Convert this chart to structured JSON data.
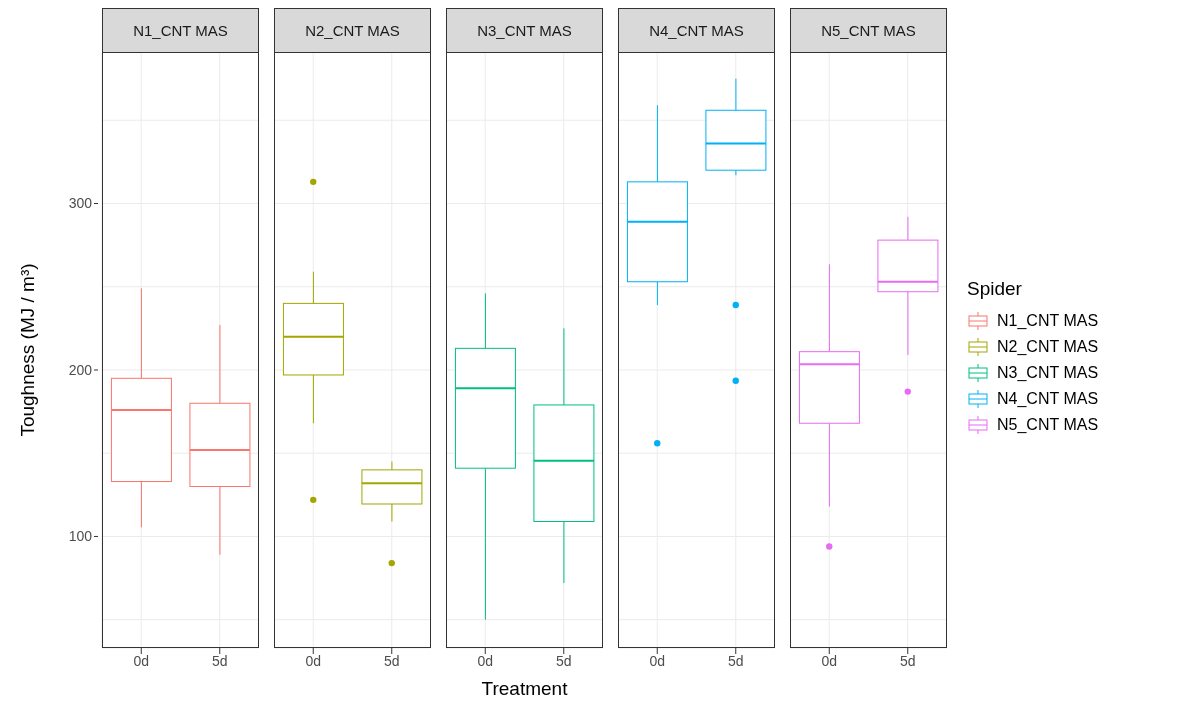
{
  "chart_data": [
    {
      "type": "box",
      "title": "N1_CNT MAS",
      "ylabel": "Toughness (MJ / m³)",
      "categories": [
        "0d",
        "5d"
      ],
      "ylim": [
        33,
        391
      ],
      "yticks": [
        {
          "value": 50,
          "label": null
        },
        100,
        {
          "value": 150,
          "label": null
        },
        200,
        {
          "value": 250,
          "label": null
        },
        300,
        {
          "value": 350,
          "label": null
        }
      ],
      "grid": true,
      "series": [
        {
          "name": "N1_CNT MAS",
          "color": "#f8766d",
          "boxes": [
            {
              "low": 105.5,
              "q1": 133,
              "median": 176,
              "q3": 195,
              "high": 249
            },
            {
              "low": 89,
              "q1": 130,
              "median": 152,
              "q3": 180,
              "high": 227
            }
          ]
        }
      ]
    },
    {
      "type": "box",
      "title": "N2_CNT MAS",
      "categories": [
        "0d",
        "5d"
      ],
      "ylim": [
        33,
        391
      ],
      "yticks": [
        {
          "value": 50,
          "label": null
        },
        100,
        {
          "value": 150,
          "label": null
        },
        200,
        {
          "value": 250,
          "label": null
        },
        300,
        {
          "value": 350,
          "label": null
        }
      ],
      "grid": true,
      "tick_labels": "x",
      "series": [
        {
          "name": "N2_CNT MAS",
          "color": "#a3a500",
          "boxes": [
            {
              "low": 168,
              "q1": 197,
              "median": 220,
              "q3": 240,
              "high": 259,
              "outliers": [
                313,
                122
              ]
            },
            {
              "low": 109,
              "q1": 119.5,
              "median": 132,
              "q3": 140,
              "high": 145,
              "outliers": [
                84
              ]
            }
          ]
        }
      ]
    },
    {
      "type": "box",
      "title": "N3_CNT MAS",
      "xlabel": "Treatment",
      "categories": [
        "0d",
        "5d"
      ],
      "ylim": [
        33,
        391
      ],
      "yticks": [
        {
          "value": 50,
          "label": null
        },
        100,
        {
          "value": 150,
          "label": null
        },
        200,
        {
          "value": 250,
          "label": null
        },
        300,
        {
          "value": 350,
          "label": null
        }
      ],
      "grid": true,
      "tick_labels": "x",
      "series": [
        {
          "name": "N3_CNT MAS",
          "color": "#00bf7d",
          "boxes": [
            {
              "low": 50,
              "q1": 141,
              "median": 189,
              "q3": 213,
              "high": 246
            },
            {
              "low": 72,
              "q1": 109,
              "median": 145.5,
              "q3": 179,
              "high": 225
            }
          ]
        }
      ]
    },
    {
      "type": "box",
      "title": "N4_CNT MAS",
      "categories": [
        "0d",
        "5d"
      ],
      "ylim": [
        33,
        391
      ],
      "yticks": [
        {
          "value": 50,
          "label": null
        },
        100,
        {
          "value": 150,
          "label": null
        },
        200,
        {
          "value": 250,
          "label": null
        },
        300,
        {
          "value": 350,
          "label": null
        }
      ],
      "grid": true,
      "tick_labels": "x",
      "series": [
        {
          "name": "N4_CNT MAS",
          "color": "#00b0f6",
          "boxes": [
            {
              "low": 239,
              "q1": 253,
              "median": 289,
              "q3": 313,
              "high": 359,
              "outliers": [
                156
              ]
            },
            {
              "low": 317,
              "q1": 320,
              "median": 336,
              "q3": 356,
              "high": 375,
              "outliers": [
                239,
                193.5
              ]
            }
          ]
        }
      ]
    },
    {
      "type": "box",
      "title": "N5_CNT MAS",
      "legend_title": "Spider",
      "legend": "right",
      "categories": [
        "0d",
        "5d"
      ],
      "ylim": [
        33,
        391
      ],
      "yticks": [
        {
          "value": 50,
          "label": null
        },
        100,
        {
          "value": 150,
          "label": null
        },
        200,
        {
          "value": 250,
          "label": null
        },
        300,
        {
          "value": 350,
          "label": null
        }
      ],
      "grid": true,
      "tick_labels": "x",
      "series": [
        {
          "name": "N5_CNT MAS",
          "color": "#e76bf3",
          "boxes": [
            {
              "low": 118,
              "q1": 168,
              "median": 203.5,
              "q3": 211,
              "high": 263.5,
              "outliers": [
                94
              ]
            },
            {
              "low": 209,
              "q1": 247,
              "median": 253,
              "q3": 278,
              "high": 292,
              "outliers": [
                187
              ]
            }
          ]
        }
      ]
    }
  ]
}
